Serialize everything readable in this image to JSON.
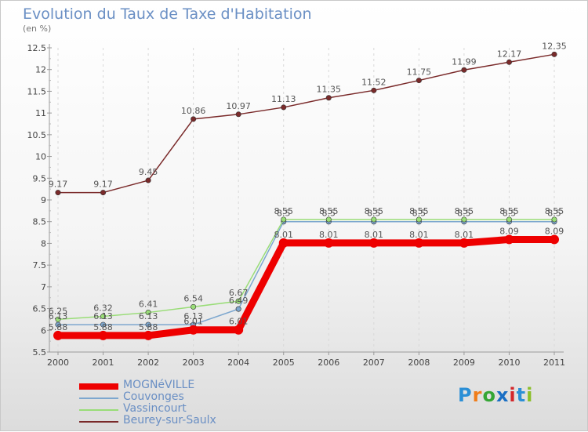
{
  "header": {
    "title": "Evolution du Taux de Taxe d'Habitation",
    "subtitle": "(en %)"
  },
  "logo": {
    "text": "Proxiti",
    "letters": [
      "P",
      "r",
      "o",
      "x",
      "i",
      "t",
      "i"
    ],
    "colors": [
      "#2b8fd6",
      "#f07d1a",
      "#35a635",
      "#1a6fc4",
      "#d4262a",
      "#2b8fd6",
      "#8bbf2a"
    ]
  },
  "chart_data": {
    "type": "line",
    "title": "Evolution du Taux de Taxe d'Habitation",
    "ylabel": "(en %)",
    "x": [
      2000,
      2001,
      2002,
      2003,
      2004,
      2005,
      2006,
      2007,
      2008,
      2009,
      2010,
      2011
    ],
    "x_labels": [
      "2000",
      "2001",
      "2002",
      "2003",
      "2004",
      "2005",
      "2006",
      "2007",
      "2008",
      "2009",
      "2010",
      "2011"
    ],
    "ylim": [
      5.5,
      12.5
    ],
    "y_ticks": [
      5.5,
      6,
      6.5,
      7,
      7.5,
      8,
      8.5,
      9,
      9.5,
      10,
      10.5,
      11,
      11.5,
      12,
      12.5
    ],
    "y_tick_labels": [
      "5.5",
      "6",
      "6.5",
      "7",
      "7.5",
      "8",
      "8.5",
      "9",
      "9.5",
      "10",
      "10.5",
      "11",
      "11.5",
      "12",
      "12.5"
    ],
    "grid": "dashed vertical",
    "legend_position": "bottom-left",
    "series": [
      {
        "name": "MOGNéVILLE",
        "color": "#ee0000",
        "values": [
          5.88,
          5.88,
          5.88,
          6.01,
          6.01,
          8.01,
          8.01,
          8.01,
          8.01,
          8.01,
          8.09,
          8.09
        ],
        "labels": [
          "5.88",
          "5.88",
          "5.88",
          "6.01",
          "6.01",
          "8.01",
          "8.01",
          "8.01",
          "8.01",
          "8.01",
          "8.09",
          "8.09"
        ],
        "style": "thick"
      },
      {
        "name": "Couvonges",
        "color": "#7da7cf",
        "values": [
          6.13,
          6.13,
          6.13,
          6.13,
          6.49,
          8.5,
          8.5,
          8.5,
          8.5,
          8.5,
          8.5,
          8.5
        ],
        "labels": [
          "6.13",
          "6.13",
          "6.13",
          "6.13",
          "6.49",
          "8.5",
          "8.5",
          "8.5",
          "8.5",
          "8.5",
          "8.5",
          "8.5"
        ],
        "style": "thin"
      },
      {
        "name": "Vassincourt",
        "color": "#99dd77",
        "values": [
          6.25,
          6.32,
          6.41,
          6.54,
          6.67,
          8.55,
          8.55,
          8.55,
          8.55,
          8.55,
          8.55,
          8.55
        ],
        "labels": [
          "6.25",
          "6.32",
          "6.41",
          "6.54",
          "6.67",
          "8.55",
          "8.55",
          "8.55",
          "8.55",
          "8.55",
          "8.55",
          "8.55"
        ],
        "style": "thin"
      },
      {
        "name": "Beurey-sur-Saulx",
        "color": "#7a2a2a",
        "values": [
          9.17,
          9.17,
          9.45,
          10.86,
          10.97,
          11.13,
          11.35,
          11.52,
          11.75,
          11.99,
          12.17,
          12.35
        ],
        "labels": [
          "9.17",
          "9.17",
          "9.45",
          "10.86",
          "10.97",
          "11.13",
          "11.35",
          "11.52",
          "11.75",
          "11.99",
          "12.17",
          "12.35"
        ],
        "style": "thin"
      }
    ]
  }
}
